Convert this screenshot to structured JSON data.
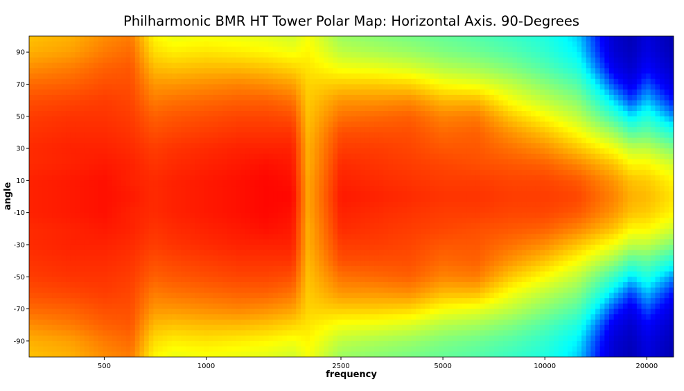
{
  "chart_data": {
    "type": "heatmap",
    "title": "Philharmonic BMR HT Tower Polar Map: Horizontal Axis. 90-Degrees",
    "xlabel": "frequency",
    "ylabel": "angle",
    "x_scale": "log",
    "xlim": [
      300,
      24000
    ],
    "ylim": [
      -100,
      100
    ],
    "x_ticks": [
      500,
      1000,
      2500,
      5000,
      10000,
      20000
    ],
    "x_tick_labels": [
      "500",
      "1000",
      "2500",
      "5000",
      "10000",
      "20000"
    ],
    "y_ticks": [
      90,
      70,
      50,
      30,
      10,
      -10,
      -30,
      -50,
      -70,
      -90
    ],
    "y_tick_labels": [
      "90",
      "70",
      "50",
      "30",
      "10",
      "-10",
      "-30",
      "-50",
      "-70",
      "-90"
    ],
    "colormap": "jet",
    "colormap_stops": [
      "#00008f",
      "#0000ff",
      "#00ffff",
      "#7fff7f",
      "#ffff00",
      "#ff8000",
      "#ff0000",
      "#800000"
    ],
    "angles": [
      -100,
      -90,
      -80,
      -70,
      -60,
      -50,
      -40,
      -30,
      -20,
      -10,
      0,
      10,
      20,
      30,
      40,
      50,
      60,
      70,
      80,
      90,
      100
    ],
    "frequencies": [
      300,
      400,
      500,
      600,
      700,
      800,
      1000,
      1250,
      1500,
      1800,
      2000,
      2500,
      3150,
      4000,
      5000,
      6300,
      8000,
      10000,
      12500,
      16000,
      18000,
      20000,
      24000
    ],
    "values_normalized": [
      [
        0.64,
        0.66,
        0.7,
        0.74,
        0.77,
        0.79,
        0.8,
        0.81,
        0.81,
        0.82,
        0.82,
        0.82,
        0.81,
        0.81,
        0.8,
        0.79,
        0.77,
        0.74,
        0.7,
        0.66,
        0.64
      ],
      [
        0.66,
        0.68,
        0.72,
        0.75,
        0.78,
        0.8,
        0.81,
        0.82,
        0.82,
        0.83,
        0.83,
        0.83,
        0.82,
        0.82,
        0.81,
        0.8,
        0.78,
        0.75,
        0.72,
        0.68,
        0.66
      ],
      [
        0.7,
        0.72,
        0.75,
        0.77,
        0.79,
        0.8,
        0.81,
        0.82,
        0.83,
        0.84,
        0.84,
        0.84,
        0.83,
        0.82,
        0.81,
        0.8,
        0.79,
        0.77,
        0.75,
        0.72,
        0.7
      ],
      [
        0.72,
        0.74,
        0.76,
        0.77,
        0.78,
        0.79,
        0.8,
        0.81,
        0.82,
        0.82,
        0.83,
        0.82,
        0.82,
        0.81,
        0.8,
        0.79,
        0.78,
        0.77,
        0.76,
        0.74,
        0.72
      ],
      [
        0.58,
        0.61,
        0.65,
        0.69,
        0.72,
        0.75,
        0.77,
        0.79,
        0.8,
        0.81,
        0.81,
        0.81,
        0.8,
        0.79,
        0.77,
        0.75,
        0.72,
        0.69,
        0.65,
        0.61,
        0.58
      ],
      [
        0.55,
        0.59,
        0.64,
        0.69,
        0.73,
        0.76,
        0.78,
        0.8,
        0.81,
        0.82,
        0.82,
        0.82,
        0.81,
        0.8,
        0.78,
        0.76,
        0.73,
        0.69,
        0.64,
        0.59,
        0.55
      ],
      [
        0.56,
        0.6,
        0.65,
        0.7,
        0.74,
        0.77,
        0.79,
        0.81,
        0.82,
        0.83,
        0.83,
        0.83,
        0.82,
        0.81,
        0.79,
        0.77,
        0.74,
        0.7,
        0.65,
        0.6,
        0.56
      ],
      [
        0.55,
        0.59,
        0.65,
        0.71,
        0.75,
        0.78,
        0.8,
        0.82,
        0.83,
        0.84,
        0.84,
        0.84,
        0.83,
        0.82,
        0.8,
        0.78,
        0.75,
        0.71,
        0.65,
        0.59,
        0.55
      ],
      [
        0.54,
        0.58,
        0.64,
        0.7,
        0.75,
        0.78,
        0.8,
        0.82,
        0.84,
        0.85,
        0.85,
        0.85,
        0.84,
        0.82,
        0.8,
        0.78,
        0.75,
        0.7,
        0.64,
        0.58,
        0.54
      ],
      [
        0.52,
        0.56,
        0.62,
        0.68,
        0.73,
        0.77,
        0.8,
        0.82,
        0.83,
        0.84,
        0.85,
        0.84,
        0.83,
        0.82,
        0.8,
        0.77,
        0.73,
        0.68,
        0.62,
        0.56,
        0.52
      ],
      [
        0.56,
        0.58,
        0.6,
        0.62,
        0.63,
        0.64,
        0.65,
        0.66,
        0.66,
        0.67,
        0.67,
        0.67,
        0.66,
        0.66,
        0.65,
        0.64,
        0.63,
        0.62,
        0.6,
        0.58,
        0.56
      ],
      [
        0.46,
        0.5,
        0.56,
        0.63,
        0.69,
        0.73,
        0.77,
        0.79,
        0.81,
        0.82,
        0.83,
        0.82,
        0.81,
        0.79,
        0.77,
        0.73,
        0.69,
        0.63,
        0.56,
        0.5,
        0.46
      ],
      [
        0.44,
        0.48,
        0.55,
        0.63,
        0.69,
        0.74,
        0.77,
        0.79,
        0.8,
        0.81,
        0.82,
        0.81,
        0.8,
        0.79,
        0.77,
        0.74,
        0.69,
        0.63,
        0.55,
        0.48,
        0.44
      ],
      [
        0.42,
        0.46,
        0.53,
        0.62,
        0.7,
        0.75,
        0.77,
        0.78,
        0.79,
        0.8,
        0.81,
        0.8,
        0.79,
        0.78,
        0.77,
        0.75,
        0.7,
        0.62,
        0.53,
        0.46,
        0.42
      ],
      [
        0.4,
        0.43,
        0.49,
        0.57,
        0.65,
        0.71,
        0.74,
        0.76,
        0.78,
        0.79,
        0.8,
        0.79,
        0.78,
        0.76,
        0.74,
        0.71,
        0.65,
        0.57,
        0.49,
        0.43,
        0.4
      ],
      [
        0.38,
        0.41,
        0.47,
        0.55,
        0.65,
        0.72,
        0.75,
        0.76,
        0.77,
        0.79,
        0.8,
        0.79,
        0.77,
        0.76,
        0.75,
        0.72,
        0.65,
        0.55,
        0.47,
        0.41,
        0.38
      ],
      [
        0.35,
        0.38,
        0.43,
        0.5,
        0.56,
        0.63,
        0.69,
        0.73,
        0.76,
        0.78,
        0.79,
        0.78,
        0.76,
        0.73,
        0.69,
        0.63,
        0.56,
        0.5,
        0.43,
        0.38,
        0.35
      ],
      [
        0.32,
        0.34,
        0.38,
        0.44,
        0.5,
        0.57,
        0.64,
        0.7,
        0.75,
        0.78,
        0.79,
        0.78,
        0.75,
        0.7,
        0.64,
        0.57,
        0.5,
        0.44,
        0.38,
        0.34,
        0.32
      ],
      [
        0.26,
        0.28,
        0.32,
        0.38,
        0.44,
        0.5,
        0.57,
        0.64,
        0.71,
        0.76,
        0.78,
        0.76,
        0.71,
        0.64,
        0.57,
        0.5,
        0.44,
        0.38,
        0.32,
        0.28,
        0.26
      ],
      [
        0.08,
        0.09,
        0.12,
        0.18,
        0.26,
        0.35,
        0.46,
        0.56,
        0.64,
        0.69,
        0.71,
        0.69,
        0.64,
        0.56,
        0.46,
        0.35,
        0.26,
        0.18,
        0.12,
        0.09,
        0.08
      ],
      [
        0.05,
        0.06,
        0.08,
        0.12,
        0.18,
        0.27,
        0.38,
        0.5,
        0.58,
        0.64,
        0.66,
        0.64,
        0.58,
        0.5,
        0.38,
        0.27,
        0.18,
        0.12,
        0.08,
        0.06,
        0.05
      ],
      [
        0.1,
        0.11,
        0.14,
        0.19,
        0.25,
        0.32,
        0.4,
        0.5,
        0.58,
        0.63,
        0.65,
        0.63,
        0.58,
        0.5,
        0.4,
        0.32,
        0.25,
        0.19,
        0.14,
        0.11,
        0.1
      ],
      [
        0.04,
        0.05,
        0.07,
        0.1,
        0.15,
        0.22,
        0.32,
        0.43,
        0.52,
        0.58,
        0.6,
        0.58,
        0.52,
        0.43,
        0.32,
        0.22,
        0.15,
        0.1,
        0.07,
        0.05,
        0.04
      ]
    ]
  }
}
